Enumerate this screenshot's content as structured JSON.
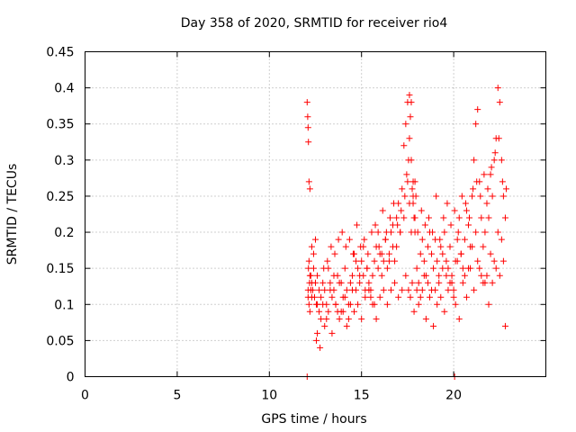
{
  "chart_data": {
    "type": "scatter",
    "title": "Day 358 of 2020, SRMTID for receiver rio4",
    "xlabel": "GPS time / hours",
    "ylabel": "SRMTID / TECUs",
    "xlim": [
      0,
      25
    ],
    "ylim": [
      0,
      0.45
    ],
    "xticks": [
      0,
      5,
      10,
      15,
      20
    ],
    "xtick_labels": [
      "0",
      "5",
      "10",
      "15",
      "20"
    ],
    "yticks": [
      0,
      0.05,
      0.1,
      0.15,
      0.2,
      0.25,
      0.3,
      0.35,
      0.4,
      0.45
    ],
    "ytick_labels": [
      "0",
      "0.05",
      "0.1",
      "0.15",
      "0.2",
      "0.25",
      "0.3",
      "0.35",
      "0.4",
      "0.45"
    ],
    "grid": true,
    "marker": "+",
    "color": "#ff0000",
    "series": [
      {
        "name": "rio4",
        "x": [
          12.05,
          12.08,
          12.1,
          12.12,
          12.15,
          12.2,
          12.25,
          12.3,
          12.35,
          12.4,
          12.45,
          12.5,
          12.55,
          12.6,
          12.7,
          12.8,
          12.9,
          13.0,
          13.1,
          13.2,
          13.3,
          13.4,
          13.5,
          13.6,
          13.7,
          13.8,
          13.9,
          14.0,
          14.1,
          14.2,
          14.3,
          14.4,
          14.5,
          14.6,
          14.7,
          14.8,
          14.9,
          15.0,
          15.1,
          15.2,
          15.3,
          15.4,
          15.5,
          15.6,
          15.7,
          15.8,
          15.9,
          16.0,
          16.1,
          16.2,
          16.3,
          16.4,
          16.5,
          16.6,
          16.7,
          16.8,
          16.9,
          17.0,
          17.1,
          17.2,
          17.3,
          17.4,
          17.5,
          17.6,
          17.7,
          17.8,
          17.9,
          18.0,
          18.1,
          18.2,
          18.3,
          18.4,
          18.5,
          18.6,
          18.7,
          18.8,
          18.9,
          19.0,
          19.1,
          19.2,
          19.3,
          19.4,
          19.5,
          19.6,
          19.7,
          19.8,
          19.9,
          20.0,
          20.1,
          20.2,
          20.3,
          20.4,
          20.5,
          20.6,
          20.7,
          20.8,
          20.9,
          21.0,
          21.1,
          21.2,
          21.3,
          21.4,
          21.5,
          21.6,
          21.7,
          21.8,
          21.9,
          22.0,
          22.1,
          22.2,
          22.3,
          22.4,
          22.5,
          22.6,
          22.7,
          22.8,
          12.1,
          12.15,
          12.2,
          12.1,
          12.15,
          12.2,
          12.12,
          12.18,
          12.25,
          12.3,
          12.4,
          12.5,
          12.6,
          12.7,
          12.9,
          13.1,
          13.3,
          13.5,
          13.7,
          13.9,
          14.1,
          14.3,
          14.5,
          14.7,
          14.9,
          15.1,
          15.3,
          15.5,
          15.7,
          15.9,
          16.1,
          16.3,
          16.5,
          16.7,
          16.9,
          17.1,
          17.3,
          17.5,
          17.6,
          17.7,
          17.8,
          17.9,
          18.0,
          18.2,
          18.4,
          18.6,
          18.8,
          19.0,
          19.2,
          19.4,
          19.6,
          19.8,
          20.0,
          20.2,
          20.4,
          20.6,
          20.8,
          21.0,
          21.2,
          21.4,
          21.6,
          21.8,
          22.0,
          22.2,
          22.4,
          22.6,
          22.8,
          12.6,
          12.8,
          13.0,
          13.2,
          13.4,
          13.6,
          13.8,
          14.0,
          14.2,
          14.4,
          14.6,
          14.8,
          15.0,
          15.2,
          15.4,
          15.6,
          15.8,
          16.0,
          16.2,
          16.4,
          16.6,
          16.8,
          17.0,
          17.2,
          17.4,
          17.55,
          17.65,
          17.75,
          17.85,
          18.1,
          18.3,
          18.5,
          18.7,
          18.9,
          19.1,
          19.3,
          19.5,
          19.7,
          19.9,
          20.1,
          20.3,
          20.5,
          20.7,
          20.9,
          21.1,
          21.3,
          21.5,
          21.7,
          21.9,
          22.1,
          22.3,
          22.5,
          22.7,
          12.3,
          12.55,
          12.75,
          12.95,
          13.15,
          13.35,
          13.55,
          13.75,
          13.95,
          14.15,
          14.35,
          14.55,
          14.75,
          14.95,
          15.15,
          15.35,
          15.55,
          15.75,
          15.95,
          16.15,
          16.35,
          16.55,
          16.75,
          16.95,
          17.15,
          17.35,
          17.45,
          17.55,
          17.6,
          17.65,
          17.7,
          17.75,
          17.8,
          17.85,
          17.9,
          17.95,
          18.05,
          18.25,
          18.45,
          18.65,
          18.85,
          19.05,
          19.25,
          19.45,
          19.65,
          19.85,
          20.05,
          20.25,
          20.45,
          20.65,
          20.85,
          21.05,
          21.25,
          21.45,
          21.65,
          21.85,
          22.05,
          22.25,
          22.45,
          22.65,
          22.85,
          12.05,
          20.05
        ],
        "y": [
          0.38,
          0.36,
          0.345,
          0.325,
          0.27,
          0.26,
          0.14,
          0.13,
          0.12,
          0.15,
          0.11,
          0.13,
          0.1,
          0.14,
          0.12,
          0.11,
          0.13,
          0.12,
          0.1,
          0.15,
          0.13,
          0.11,
          0.12,
          0.1,
          0.14,
          0.13,
          0.09,
          0.11,
          0.15,
          0.12,
          0.1,
          0.13,
          0.14,
          0.17,
          0.12,
          0.15,
          0.13,
          0.16,
          0.14,
          0.12,
          0.15,
          0.13,
          0.11,
          0.14,
          0.16,
          0.18,
          0.15,
          0.17,
          0.14,
          0.16,
          0.19,
          0.15,
          0.17,
          0.2,
          0.18,
          0.16,
          0.22,
          0.24,
          0.2,
          0.26,
          0.32,
          0.35,
          0.38,
          0.39,
          0.3,
          0.27,
          0.22,
          0.15,
          0.13,
          0.17,
          0.19,
          0.16,
          0.14,
          0.18,
          0.2,
          0.17,
          0.15,
          0.19,
          0.16,
          0.14,
          0.18,
          0.17,
          0.2,
          0.16,
          0.15,
          0.18,
          0.14,
          0.12,
          0.16,
          0.19,
          0.22,
          0.17,
          0.15,
          0.19,
          0.23,
          0.21,
          0.18,
          0.25,
          0.3,
          0.35,
          0.37,
          0.27,
          0.22,
          0.18,
          0.2,
          0.24,
          0.22,
          0.28,
          0.25,
          0.3,
          0.33,
          0.4,
          0.38,
          0.3,
          0.25,
          0.22,
          0.12,
          0.1,
          0.09,
          0.11,
          0.16,
          0.14,
          0.15,
          0.13,
          0.12,
          0.11,
          0.17,
          0.19,
          0.1,
          0.09,
          0.1,
          0.08,
          0.12,
          0.14,
          0.09,
          0.13,
          0.11,
          0.08,
          0.12,
          0.16,
          0.14,
          0.18,
          0.15,
          0.12,
          0.1,
          0.2,
          0.17,
          0.19,
          0.16,
          0.21,
          0.18,
          0.2,
          0.22,
          0.27,
          0.24,
          0.2,
          0.25,
          0.2,
          0.12,
          0.11,
          0.14,
          0.13,
          0.12,
          0.12,
          0.13,
          0.15,
          0.14,
          0.13,
          0.11,
          0.16,
          0.17,
          0.14,
          0.15,
          0.18,
          0.2,
          0.15,
          0.13,
          0.14,
          0.17,
          0.16,
          0.2,
          0.19,
          0.07,
          0.06,
          0.08,
          0.07,
          0.09,
          0.06,
          0.1,
          0.08,
          0.09,
          0.07,
          0.1,
          0.09,
          0.1,
          0.08,
          0.11,
          0.12,
          0.1,
          0.08,
          0.11,
          0.12,
          0.1,
          0.12,
          0.13,
          0.11,
          0.12,
          0.14,
          0.12,
          0.11,
          0.13,
          0.09,
          0.1,
          0.12,
          0.08,
          0.11,
          0.07,
          0.1,
          0.11,
          0.09,
          0.12,
          0.13,
          0.1,
          0.08,
          0.13,
          0.11,
          0.15,
          0.12,
          0.16,
          0.14,
          0.13,
          0.1,
          0.13,
          0.15,
          0.14,
          0.16,
          0.18,
          0.05,
          0.04,
          0.15,
          0.16,
          0.18,
          0.17,
          0.19,
          0.2,
          0.18,
          0.19,
          0.17,
          0.21,
          0.18,
          0.19,
          0.17,
          0.2,
          0.21,
          0.18,
          0.23,
          0.2,
          0.22,
          0.24,
          0.21,
          0.23,
          0.25,
          0.28,
          0.3,
          0.33,
          0.36,
          0.38,
          0.26,
          0.24,
          0.22,
          0.27,
          0.25,
          0.2,
          0.23,
          0.21,
          0.22,
          0.2,
          0.25,
          0.19,
          0.22,
          0.24,
          0.21,
          0.23,
          0.2,
          0.25,
          0.24,
          0.22,
          0.26,
          0.27,
          0.25,
          0.28,
          0.26,
          0.29,
          0.31,
          0.33,
          0.27,
          0.26,
          0.0,
          0.0
        ]
      }
    ]
  }
}
